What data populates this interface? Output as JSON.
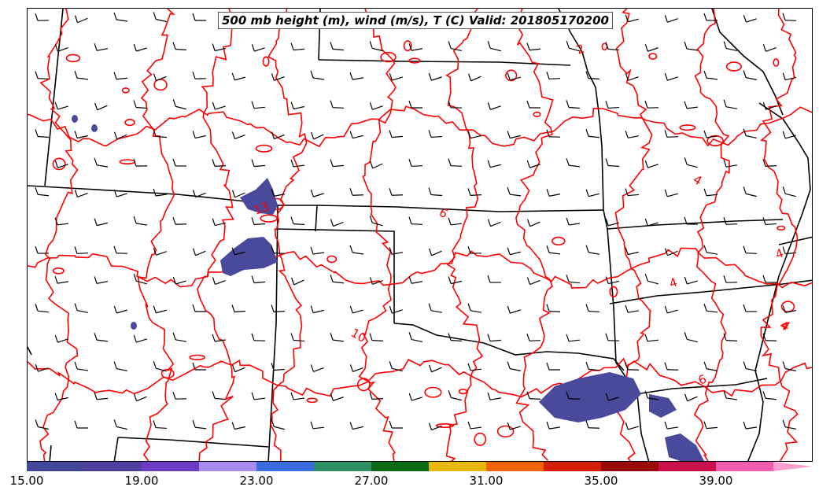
{
  "title": "500 mb height (m), wind (m/s), T (C) Valid: 201805170200",
  "contour_labels": [
    "2",
    "4",
    "4",
    "4",
    "4",
    "6",
    "6",
    "10",
    "13",
    "4"
  ],
  "colorbar": {
    "tick_labels": [
      "15.00",
      "19.00",
      "23.00",
      "27.00",
      "31.00",
      "35.00",
      "39.00"
    ],
    "colors": [
      "#43479a",
      "#4f3fa0",
      "#6a3cc2",
      "#a98bf0",
      "#3a6ee0",
      "#2f8f64",
      "#0a6b14",
      "#e8b90a",
      "#f26405",
      "#d41f08",
      "#9b0808",
      "#c8104a",
      "#f25cb0",
      "#f9a0cf"
    ]
  },
  "colors": {
    "contour": "#ff0000",
    "boundary": "#000000",
    "fill": "#4a4a9c"
  }
}
